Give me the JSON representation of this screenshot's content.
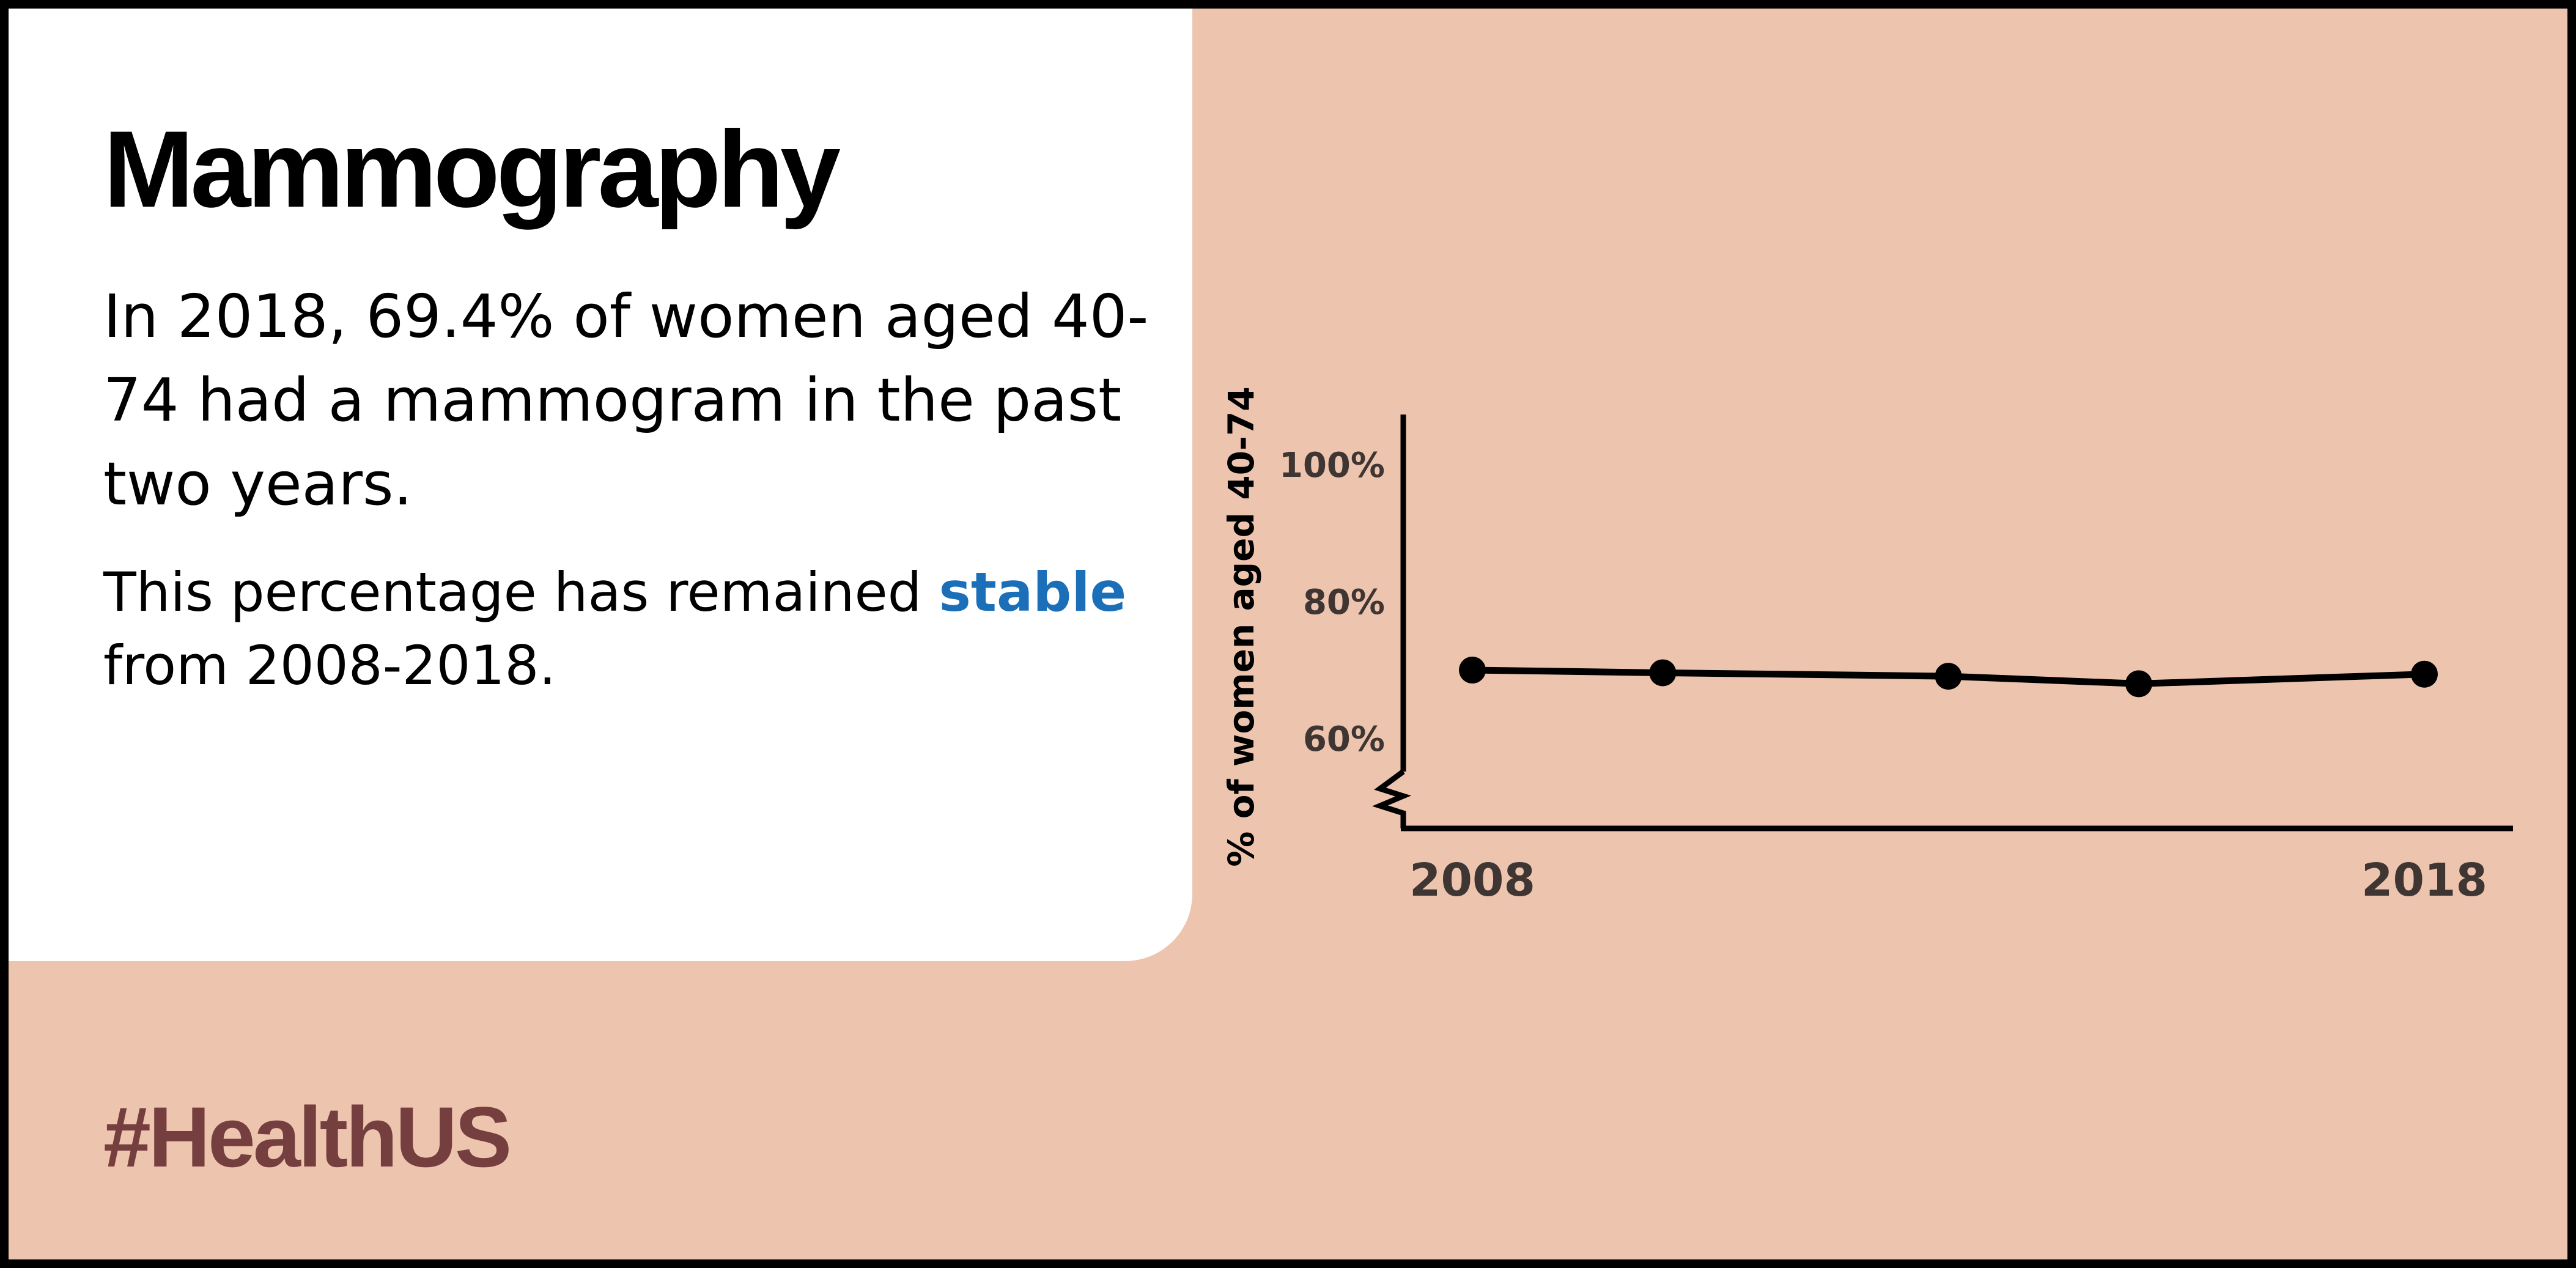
{
  "title": "Mammography",
  "paragraph1": "In 2018, 69.4% of women aged 40-74 had a mammogram in the past two years.",
  "paragraph2": {
    "before": "This percentage has remained ",
    "highlight": "stable",
    "after": " from 2008-2018."
  },
  "hashtag": "#HealthUS",
  "colors": {
    "background": "#EDC5AF",
    "card": "#FFFFFF",
    "highlight": "#1A6FB8",
    "hashtag": "#763F3F",
    "line": "#000000"
  },
  "chart_data": {
    "type": "line",
    "ylabel": "% of women aged 40-74",
    "ylim": [
      50,
      105
    ],
    "y_ticks": [
      60,
      80,
      100
    ],
    "y_tick_labels": [
      "60%",
      "80%",
      "100%"
    ],
    "axis_break": true,
    "x": [
      2008,
      2010,
      2013,
      2015,
      2018
    ],
    "x_tick_labels": [
      {
        "x": 2008,
        "label": "2008"
      },
      {
        "x": 2018,
        "label": "2018"
      }
    ],
    "series": [
      {
        "values": [
          70.0,
          69.6,
          69.1,
          68.0,
          69.4
        ]
      }
    ],
    "grid": false
  }
}
